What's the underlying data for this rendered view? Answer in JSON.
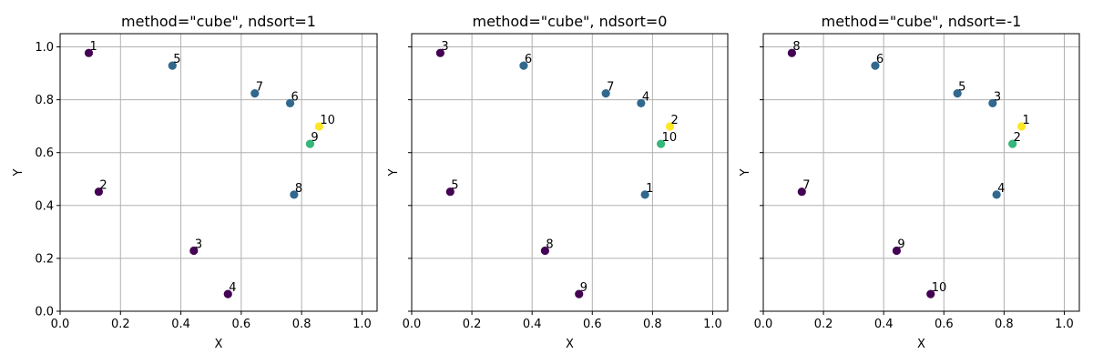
{
  "chart_data": [
    {
      "type": "scatter",
      "title": "method=\"cube\", ndsort=1",
      "xlabel": "X",
      "ylabel": "Y",
      "xlim": [
        0.0,
        1.05
      ],
      "ylim": [
        0.0,
        1.05
      ],
      "xticks": [
        "0.0",
        "0.2",
        "0.4",
        "0.6",
        "0.8",
        "1.0"
      ],
      "yticks": [
        "0.0",
        "0.2",
        "0.4",
        "0.6",
        "0.8",
        "1.0"
      ],
      "grid": true,
      "show_ytick_labels": true,
      "points": [
        {
          "label": "1",
          "x": 0.095,
          "y": 0.977,
          "color": "#440154"
        },
        {
          "label": "2",
          "x": 0.128,
          "y": 0.452,
          "color": "#440154"
        },
        {
          "label": "3",
          "x": 0.443,
          "y": 0.229,
          "color": "#440154"
        },
        {
          "label": "4",
          "x": 0.556,
          "y": 0.065,
          "color": "#440154"
        },
        {
          "label": "5",
          "x": 0.372,
          "y": 0.929,
          "color": "#31688e"
        },
        {
          "label": "6",
          "x": 0.762,
          "y": 0.787,
          "color": "#31688e"
        },
        {
          "label": "7",
          "x": 0.645,
          "y": 0.824,
          "color": "#31688e"
        },
        {
          "label": "8",
          "x": 0.775,
          "y": 0.441,
          "color": "#31688e"
        },
        {
          "label": "9",
          "x": 0.828,
          "y": 0.633,
          "color": "#35b779"
        },
        {
          "label": "10",
          "x": 0.858,
          "y": 0.699,
          "color": "#fde725"
        }
      ]
    },
    {
      "type": "scatter",
      "title": "method=\"cube\", ndsort=0",
      "xlabel": "X",
      "ylabel": "Y",
      "xlim": [
        0.0,
        1.05
      ],
      "ylim": [
        0.0,
        1.05
      ],
      "xticks": [
        "0.0",
        "0.2",
        "0.4",
        "0.6",
        "0.8",
        "1.0"
      ],
      "yticks": [
        "0.0",
        "0.2",
        "0.4",
        "0.6",
        "0.8",
        "1.0"
      ],
      "grid": true,
      "show_ytick_labels": false,
      "points": [
        {
          "label": "3",
          "x": 0.095,
          "y": 0.977,
          "color": "#440154"
        },
        {
          "label": "5",
          "x": 0.128,
          "y": 0.452,
          "color": "#440154"
        },
        {
          "label": "8",
          "x": 0.443,
          "y": 0.229,
          "color": "#440154"
        },
        {
          "label": "9",
          "x": 0.556,
          "y": 0.065,
          "color": "#440154"
        },
        {
          "label": "6",
          "x": 0.372,
          "y": 0.929,
          "color": "#31688e"
        },
        {
          "label": "4",
          "x": 0.762,
          "y": 0.787,
          "color": "#31688e"
        },
        {
          "label": "7",
          "x": 0.645,
          "y": 0.824,
          "color": "#31688e"
        },
        {
          "label": "1",
          "x": 0.775,
          "y": 0.441,
          "color": "#31688e"
        },
        {
          "label": "10",
          "x": 0.828,
          "y": 0.633,
          "color": "#35b779"
        },
        {
          "label": "2",
          "x": 0.858,
          "y": 0.699,
          "color": "#fde725"
        }
      ]
    },
    {
      "type": "scatter",
      "title": "method=\"cube\", ndsort=-1",
      "xlabel": "X",
      "ylabel": "Y",
      "xlim": [
        0.0,
        1.05
      ],
      "ylim": [
        0.0,
        1.05
      ],
      "xticks": [
        "0.0",
        "0.2",
        "0.4",
        "0.6",
        "0.8",
        "1.0"
      ],
      "yticks": [
        "0.0",
        "0.2",
        "0.4",
        "0.6",
        "0.8",
        "1.0"
      ],
      "grid": true,
      "show_ytick_labels": false,
      "points": [
        {
          "label": "8",
          "x": 0.095,
          "y": 0.977,
          "color": "#440154"
        },
        {
          "label": "7",
          "x": 0.128,
          "y": 0.452,
          "color": "#440154"
        },
        {
          "label": "9",
          "x": 0.443,
          "y": 0.229,
          "color": "#440154"
        },
        {
          "label": "10",
          "x": 0.556,
          "y": 0.065,
          "color": "#440154"
        },
        {
          "label": "6",
          "x": 0.372,
          "y": 0.929,
          "color": "#31688e"
        },
        {
          "label": "3",
          "x": 0.762,
          "y": 0.787,
          "color": "#31688e"
        },
        {
          "label": "5",
          "x": 0.645,
          "y": 0.824,
          "color": "#31688e"
        },
        {
          "label": "4",
          "x": 0.775,
          "y": 0.441,
          "color": "#31688e"
        },
        {
          "label": "2",
          "x": 0.828,
          "y": 0.633,
          "color": "#35b779"
        },
        {
          "label": "1",
          "x": 0.858,
          "y": 0.699,
          "color": "#fde725"
        }
      ]
    }
  ]
}
